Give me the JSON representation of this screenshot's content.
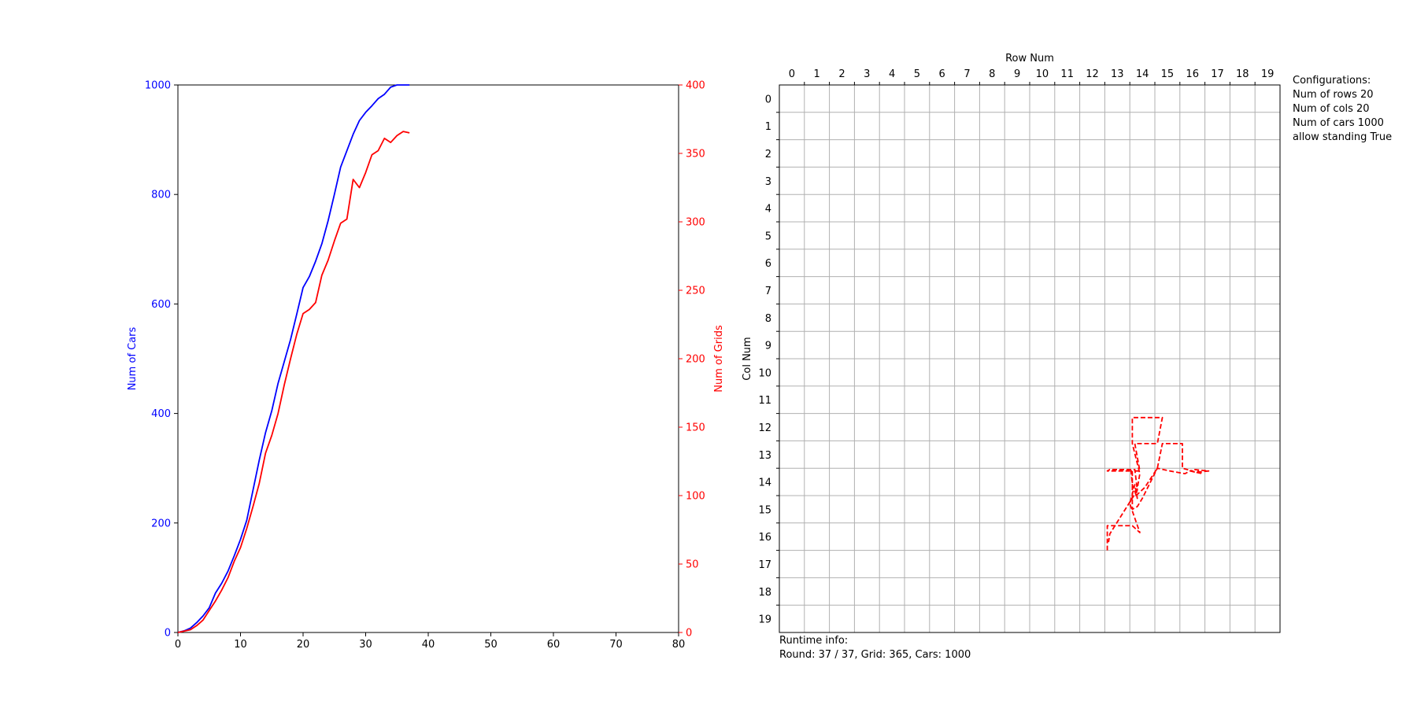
{
  "chart_data": [
    {
      "type": "line",
      "x": [
        0,
        1,
        2,
        3,
        4,
        5,
        6,
        7,
        8,
        9,
        10,
        11,
        12,
        13,
        14,
        15,
        16,
        17,
        18,
        19,
        20,
        21,
        22,
        23,
        24,
        25,
        26,
        27,
        28,
        29,
        30,
        31,
        32,
        33,
        34,
        35,
        36,
        37
      ],
      "xlim": [
        0,
        80
      ],
      "xticks": [
        "0",
        "10",
        "20",
        "30",
        "40",
        "50",
        "60",
        "70",
        "80"
      ],
      "grid": false,
      "series": [
        {
          "name": "Num of Cars",
          "axis": "left",
          "color": "#0000ff",
          "values": [
            0,
            3,
            8,
            18,
            30,
            45,
            72,
            90,
            112,
            140,
            170,
            205,
            260,
            315,
            365,
            405,
            455,
            495,
            535,
            582,
            630,
            650,
            678,
            710,
            752,
            800,
            850,
            880,
            910,
            935,
            950,
            962,
            975,
            983,
            996,
            1000,
            1000,
            1000
          ]
        },
        {
          "name": "Num of Grids",
          "axis": "right",
          "color": "#ff0000",
          "values": [
            0,
            1,
            2,
            5,
            9,
            16,
            23,
            31,
            40,
            52,
            62,
            76,
            92,
            109,
            131,
            144,
            160,
            181,
            200,
            218,
            233,
            236,
            241,
            261,
            272,
            286,
            299,
            302,
            331,
            325,
            336,
            349,
            352,
            361,
            358,
            363,
            366,
            365
          ]
        }
      ],
      "ylabel": "Num of Cars",
      "ylim": [
        0,
        1000
      ],
      "yticks": [
        "0",
        "200",
        "400",
        "600",
        "800",
        "1000"
      ],
      "y2label": "Num of Grids",
      "y2lim": [
        0,
        400
      ],
      "y2ticks": [
        "0",
        "50",
        "100",
        "150",
        "200",
        "250",
        "300",
        "350",
        "400"
      ]
    },
    {
      "type": "line",
      "xlabel": "Row Num",
      "ylabel": "Col Num",
      "xticks": [
        "0",
        "1",
        "2",
        "3",
        "4",
        "5",
        "6",
        "7",
        "8",
        "9",
        "10",
        "11",
        "12",
        "13",
        "14",
        "15",
        "16",
        "17",
        "18",
        "19"
      ],
      "yticks": [
        "0",
        "1",
        "2",
        "3",
        "4",
        "5",
        "6",
        "7",
        "8",
        "9",
        "10",
        "11",
        "12",
        "13",
        "14",
        "15",
        "16",
        "17",
        "18",
        "19"
      ],
      "xlim": [
        -0.5,
        19.5
      ],
      "ylim": [
        19.5,
        -0.5
      ],
      "grid": true,
      "series": [
        {
          "name": "path",
          "color": "#ff0000",
          "dashed": true,
          "points": [
            [
              12.6,
              16.5
            ],
            [
              12.6,
              15.6
            ],
            [
              13.6,
              15.6
            ],
            [
              13.9,
              15.85
            ],
            [
              13.5,
              14.8
            ],
            [
              13.7,
              14.1
            ],
            [
              13.8,
              14.6
            ],
            [
              13.6,
              14.1
            ],
            [
              13.55,
              13.6
            ],
            [
              13.9,
              13.6
            ],
            [
              13.7,
              12.6
            ],
            [
              14.6,
              12.6
            ],
            [
              14.8,
              11.65
            ],
            [
              13.6,
              11.65
            ],
            [
              13.6,
              12.6
            ],
            [
              13.9,
              13.7
            ],
            [
              13.75,
              14.5
            ],
            [
              14.1,
              14.2
            ],
            [
              14.6,
              13.5
            ],
            [
              14.8,
              12.6
            ],
            [
              15.6,
              12.6
            ],
            [
              15.6,
              13.5
            ],
            [
              16.0,
              13.6
            ],
            [
              16.1,
              13.65
            ],
            [
              16.65,
              13.6
            ],
            [
              16.1,
              13.55
            ],
            [
              16.4,
              13.7
            ],
            [
              15.9,
              13.6
            ],
            [
              15.7,
              13.7
            ],
            [
              15.1,
              13.6
            ],
            [
              14.6,
              13.5
            ],
            [
              14.0,
              14.6
            ],
            [
              13.8,
              14.9
            ],
            [
              13.6,
              15.0
            ],
            [
              13.6,
              13.6
            ],
            [
              12.6,
              13.6
            ],
            [
              12.7,
              13.55
            ],
            [
              13.7,
              13.55
            ],
            [
              13.8,
              14.3
            ],
            [
              12.7,
              15.9
            ],
            [
              12.65,
              16.2
            ]
          ]
        }
      ]
    }
  ],
  "config": {
    "title": "Configurations:",
    "lines": [
      "Num of rows 20",
      "Num of cols 20",
      "Num of cars 1000",
      "allow standing True"
    ]
  },
  "runtime": {
    "title": "Runtime info:",
    "status": "Round: 37 / 37, Grid: 365, Cars: 1000"
  }
}
